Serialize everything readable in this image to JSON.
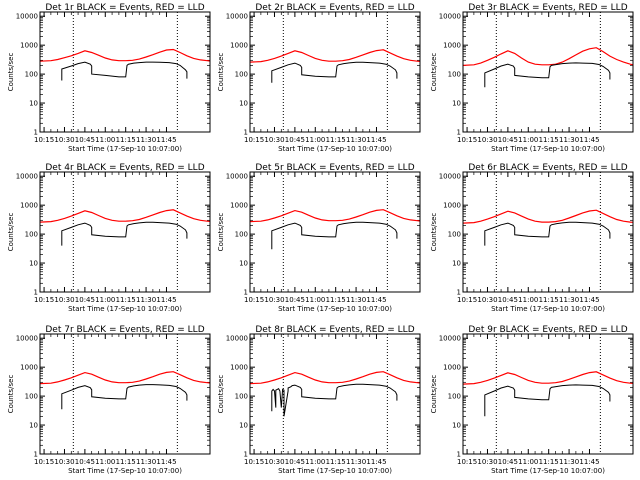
{
  "chart_data": {
    "type": "line",
    "panel_type": "line",
    "yscale": "log",
    "ylim": [
      1,
      14000
    ],
    "xlim": [
      -3,
      122
    ],
    "x_unit": "minutes after 10:15",
    "x_ticks": [
      {
        "label": "10:15",
        "x": 0
      },
      {
        "label": "10:30",
        "x": 15
      },
      {
        "label": "10:45",
        "x": 30
      },
      {
        "label": "11:00",
        "x": 45
      },
      {
        "label": "11:15",
        "x": 60
      },
      {
        "label": "11:30",
        "x": 75
      },
      {
        "label": "11:45",
        "x": 90
      }
    ],
    "y_ticks": [
      {
        "label": "10000",
        "y": 10000
      },
      {
        "label": "1000",
        "y": 1000
      },
      {
        "label": "100",
        "y": 100
      },
      {
        "label": "10",
        "y": 10
      },
      {
        "label": "1",
        "y": 1
      }
    ],
    "xlabel": "Start Time (17-Sep-10 10:07:00)",
    "ylabel": "Counts/sec",
    "event_lines_x": [
      21.5,
      98
    ],
    "series_colors": {
      "events": "#000000",
      "lld": "#ff0000"
    },
    "panels": [
      {
        "title": "Det 1r BLACK = Events, RED = LLD",
        "lld": {
          "x": [
            -3,
            5,
            10,
            15,
            20,
            25,
            30,
            35,
            40,
            45,
            50,
            55,
            60,
            65,
            70,
            75,
            80,
            85,
            90,
            95,
            100,
            105,
            110,
            115,
            120,
            122
          ],
          "y": [
            280,
            290,
            320,
            370,
            430,
            520,
            640,
            560,
            450,
            360,
            310,
            290,
            290,
            300,
            330,
            390,
            470,
            570,
            680,
            710,
            560,
            430,
            350,
            310,
            290,
            285
          ]
        },
        "events": {
          "x": [
            13,
            13,
            20,
            25,
            30,
            34,
            35,
            35,
            45,
            55,
            60,
            61,
            62,
            66,
            70,
            75,
            80,
            85,
            92,
            97,
            100,
            104,
            105,
            105
          ],
          "y": [
            60,
            150,
            190,
            230,
            260,
            220,
            190,
            100,
            90,
            80,
            80,
            200,
            220,
            240,
            250,
            260,
            260,
            255,
            250,
            230,
            200,
            140,
            120,
            70
          ]
        }
      },
      {
        "title": "Det 2r BLACK = Events, RED = LLD",
        "lld": {
          "x": [
            -3,
            5,
            10,
            15,
            20,
            25,
            30,
            35,
            40,
            45,
            50,
            55,
            60,
            65,
            70,
            75,
            80,
            85,
            90,
            95,
            100,
            105,
            110,
            115,
            120,
            122
          ],
          "y": [
            260,
            270,
            300,
            350,
            420,
            520,
            640,
            560,
            440,
            350,
            300,
            280,
            280,
            290,
            320,
            380,
            460,
            560,
            650,
            690,
            540,
            420,
            340,
            300,
            280,
            275
          ]
        },
        "events": {
          "x": [
            13,
            13,
            20,
            25,
            30,
            34,
            35,
            35,
            45,
            55,
            60,
            61,
            62,
            66,
            70,
            75,
            80,
            85,
            92,
            97,
            100,
            104,
            105,
            105
          ],
          "y": [
            50,
            130,
            170,
            210,
            240,
            200,
            170,
            95,
            85,
            80,
            80,
            190,
            210,
            230,
            245,
            255,
            255,
            250,
            240,
            220,
            190,
            140,
            110,
            70
          ]
        }
      },
      {
        "title": "Det 3r BLACK = Events, RED = LLD",
        "lld": {
          "x": [
            -3,
            5,
            10,
            15,
            20,
            25,
            30,
            35,
            40,
            45,
            50,
            55,
            60,
            65,
            70,
            75,
            80,
            85,
            90,
            95,
            100,
            105,
            110,
            115,
            120,
            122
          ],
          "y": [
            200,
            210,
            240,
            300,
            380,
            500,
            640,
            520,
            360,
            260,
            220,
            210,
            210,
            220,
            260,
            340,
            460,
            620,
            750,
            820,
            600,
            420,
            320,
            260,
            220,
            210
          ]
        },
        "events": {
          "x": [
            13,
            13,
            20,
            25,
            30,
            34,
            35,
            35,
            45,
            55,
            60,
            61,
            62,
            66,
            70,
            75,
            80,
            85,
            92,
            97,
            100,
            104,
            105,
            105
          ],
          "y": [
            35,
            110,
            150,
            190,
            220,
            190,
            160,
            90,
            80,
            75,
            75,
            180,
            200,
            215,
            230,
            240,
            245,
            240,
            235,
            215,
            185,
            135,
            110,
            65
          ]
        }
      },
      {
        "title": "Det 4r BLACK = Events, RED = LLD",
        "lld": {
          "x": [
            -3,
            5,
            10,
            15,
            20,
            25,
            30,
            35,
            40,
            45,
            50,
            55,
            60,
            65,
            70,
            75,
            80,
            85,
            90,
            95,
            100,
            105,
            110,
            115,
            120,
            122
          ],
          "y": [
            260,
            270,
            300,
            350,
            420,
            520,
            640,
            560,
            440,
            350,
            300,
            280,
            280,
            290,
            320,
            380,
            460,
            560,
            650,
            690,
            540,
            420,
            340,
            300,
            280,
            275
          ]
        },
        "events": {
          "x": [
            13,
            13,
            20,
            25,
            30,
            34,
            35,
            35,
            45,
            55,
            60,
            61,
            62,
            66,
            70,
            75,
            80,
            85,
            92,
            97,
            100,
            104,
            105,
            105
          ],
          "y": [
            40,
            130,
            170,
            210,
            240,
            200,
            170,
            95,
            85,
            80,
            80,
            190,
            210,
            230,
            245,
            255,
            255,
            250,
            240,
            220,
            190,
            140,
            110,
            70
          ]
        }
      },
      {
        "title": "Det 5r BLACK = Events, RED = LLD",
        "lld": {
          "x": [
            -3,
            5,
            10,
            15,
            20,
            25,
            30,
            35,
            40,
            45,
            50,
            55,
            60,
            65,
            70,
            75,
            80,
            85,
            90,
            95,
            100,
            105,
            110,
            115,
            120,
            122
          ],
          "y": [
            270,
            280,
            310,
            360,
            430,
            530,
            650,
            570,
            450,
            360,
            310,
            290,
            290,
            300,
            330,
            390,
            470,
            570,
            660,
            700,
            550,
            430,
            350,
            310,
            290,
            285
          ]
        },
        "events": {
          "x": [
            13,
            13,
            20,
            25,
            30,
            34,
            35,
            35,
            45,
            55,
            60,
            61,
            62,
            66,
            70,
            75,
            80,
            85,
            92,
            97,
            100,
            104,
            105,
            105
          ],
          "y": [
            30,
            130,
            170,
            210,
            240,
            200,
            170,
            95,
            85,
            80,
            80,
            190,
            210,
            230,
            245,
            255,
            255,
            250,
            240,
            220,
            190,
            140,
            110,
            70
          ]
        }
      },
      {
        "title": "Det 6r BLACK = Events, RED = LLD",
        "lld": {
          "x": [
            -3,
            5,
            10,
            15,
            20,
            25,
            30,
            35,
            40,
            45,
            50,
            55,
            60,
            65,
            70,
            75,
            80,
            85,
            90,
            95,
            100,
            105,
            110,
            115,
            120,
            122
          ],
          "y": [
            240,
            250,
            280,
            330,
            400,
            500,
            620,
            540,
            420,
            330,
            280,
            260,
            260,
            270,
            300,
            360,
            440,
            540,
            630,
            670,
            520,
            400,
            320,
            280,
            260,
            255
          ]
        },
        "events": {
          "x": [
            13,
            13,
            20,
            25,
            30,
            34,
            35,
            35,
            45,
            55,
            60,
            61,
            62,
            66,
            70,
            75,
            80,
            85,
            92,
            97,
            100,
            104,
            105,
            105
          ],
          "y": [
            40,
            130,
            170,
            210,
            240,
            200,
            170,
            95,
            85,
            80,
            80,
            190,
            210,
            230,
            245,
            255,
            255,
            250,
            240,
            220,
            190,
            140,
            110,
            70
          ]
        }
      },
      {
        "title": "Det 7r BLACK = Events, RED = LLD",
        "lld": {
          "x": [
            -3,
            5,
            10,
            15,
            20,
            25,
            30,
            35,
            40,
            45,
            50,
            55,
            60,
            65,
            70,
            75,
            80,
            85,
            90,
            95,
            100,
            105,
            110,
            115,
            120,
            122
          ],
          "y": [
            270,
            280,
            310,
            360,
            430,
            530,
            650,
            570,
            450,
            360,
            310,
            290,
            290,
            300,
            330,
            390,
            470,
            570,
            660,
            700,
            550,
            430,
            350,
            310,
            290,
            285
          ]
        },
        "events": {
          "x": [
            13,
            13,
            20,
            25,
            30,
            34,
            35,
            35,
            45,
            55,
            60,
            61,
            62,
            66,
            70,
            75,
            80,
            85,
            92,
            97,
            100,
            104,
            105,
            105
          ],
          "y": [
            35,
            120,
            160,
            200,
            230,
            195,
            165,
            95,
            85,
            80,
            80,
            185,
            205,
            225,
            240,
            250,
            250,
            245,
            235,
            215,
            185,
            135,
            110,
            70
          ]
        }
      },
      {
        "title": "Det 8r BLACK = Events, RED = LLD",
        "lld": {
          "x": [
            -3,
            5,
            10,
            15,
            20,
            25,
            30,
            35,
            40,
            45,
            50,
            55,
            60,
            65,
            70,
            75,
            80,
            85,
            90,
            95,
            100,
            105,
            110,
            115,
            120,
            122
          ],
          "y": [
            270,
            280,
            310,
            360,
            430,
            530,
            650,
            570,
            450,
            360,
            310,
            290,
            290,
            300,
            330,
            390,
            470,
            570,
            660,
            700,
            550,
            430,
            350,
            310,
            290,
            285
          ]
        },
        "events": {
          "x": [
            13,
            13,
            14,
            15,
            16,
            16,
            18,
            19,
            20,
            21,
            22,
            22,
            25,
            25,
            27,
            28,
            30,
            34,
            35,
            35,
            45,
            55,
            60,
            61,
            62,
            66,
            70,
            75,
            80,
            85,
            92,
            97,
            100,
            104,
            105,
            105
          ],
          "y": [
            30,
            150,
            170,
            150,
            40,
            160,
            180,
            150,
            40,
            170,
            160,
            20,
            150,
            190,
            210,
            230,
            240,
            200,
            170,
            95,
            85,
            80,
            80,
            190,
            210,
            230,
            245,
            255,
            255,
            250,
            240,
            220,
            190,
            140,
            110,
            70
          ]
        }
      },
      {
        "title": "Det 9r BLACK = Events, RED = LLD",
        "lld": {
          "x": [
            -3,
            5,
            10,
            15,
            20,
            25,
            30,
            35,
            40,
            45,
            50,
            55,
            60,
            65,
            70,
            75,
            80,
            85,
            90,
            95,
            100,
            105,
            110,
            115,
            120,
            122
          ],
          "y": [
            260,
            270,
            300,
            350,
            420,
            520,
            640,
            560,
            440,
            350,
            300,
            280,
            280,
            290,
            320,
            380,
            460,
            560,
            650,
            690,
            540,
            420,
            340,
            300,
            280,
            275
          ]
        },
        "events": {
          "x": [
            13,
            13,
            20,
            25,
            30,
            34,
            35,
            35,
            45,
            55,
            60,
            61,
            62,
            66,
            70,
            75,
            80,
            85,
            92,
            97,
            100,
            104,
            105,
            105
          ],
          "y": [
            20,
            110,
            150,
            190,
            220,
            190,
            160,
            90,
            80,
            75,
            75,
            180,
            200,
            215,
            230,
            240,
            245,
            240,
            235,
            215,
            185,
            135,
            110,
            65
          ]
        }
      }
    ]
  }
}
